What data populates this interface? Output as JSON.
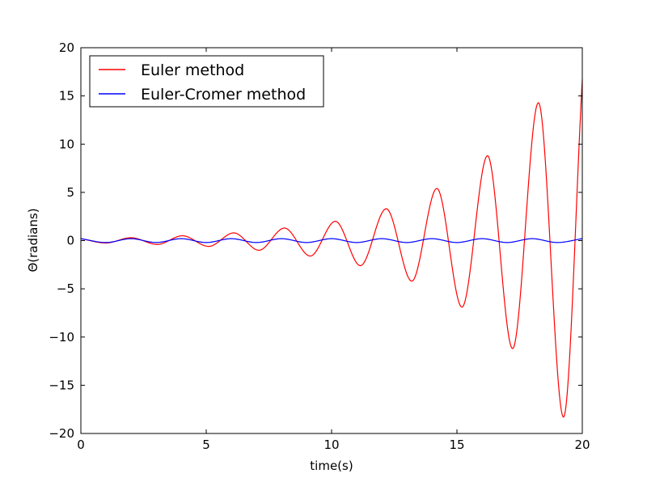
{
  "chart_data": {
    "type": "line",
    "title": "",
    "xlabel": "time(s)",
    "ylabel": "Θ(radians)",
    "xlim": [
      0,
      20
    ],
    "ylim": [
      -20,
      20
    ],
    "xticks": [
      0,
      5,
      10,
      15,
      20
    ],
    "yticks": [
      20,
      15,
      10,
      5,
      0,
      -5,
      -10,
      -15,
      -20
    ],
    "xtick_labels": [
      "0",
      "5",
      "10",
      "15",
      "20"
    ],
    "ytick_labels": [
      "20",
      "15",
      "10",
      "5",
      "0",
      "−5",
      "−10",
      "−15",
      "−20"
    ],
    "grid": false,
    "legend_position": "top-left",
    "series": [
      {
        "name": "Euler method",
        "color": "#ff0000",
        "x": [
          0,
          1.0,
          2.0,
          3.05,
          4.05,
          5.1,
          6.1,
          7.1,
          8.12,
          9.15,
          10.15,
          11.15,
          12.18,
          13.2,
          14.2,
          15.2,
          16.22,
          17.22,
          18.25,
          19.25,
          20.0
        ],
        "y": [
          0.2,
          -0.25,
          0.3,
          -0.4,
          0.5,
          -0.6,
          0.8,
          -1.0,
          1.3,
          -1.6,
          2.0,
          -2.6,
          3.3,
          -4.2,
          5.4,
          -6.9,
          8.8,
          -11.2,
          14.3,
          -18.3,
          16.7
        ]
      },
      {
        "name": "Euler-Cromer method",
        "color": "#0000ff",
        "x": [
          0,
          1.0,
          2.0,
          3.0,
          4.0,
          5.0,
          6.0,
          7.0,
          8.0,
          9.0,
          10.0,
          11.0,
          12.0,
          13.0,
          14.0,
          15.0,
          16.0,
          17.0,
          18.0,
          19.0,
          20.0
        ],
        "y": [
          0.2,
          -0.2,
          0.2,
          -0.2,
          0.2,
          -0.2,
          0.2,
          -0.2,
          0.2,
          -0.2,
          0.2,
          -0.2,
          0.2,
          -0.2,
          0.2,
          -0.2,
          0.2,
          -0.2,
          0.2,
          -0.2,
          0.2
        ]
      }
    ]
  }
}
